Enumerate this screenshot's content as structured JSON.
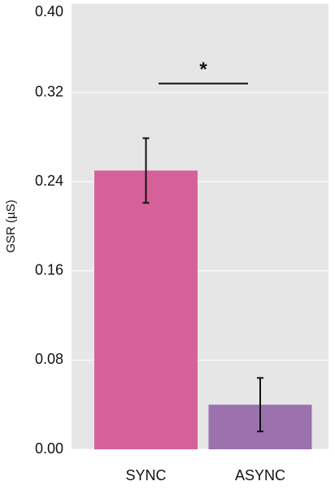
{
  "chart_data": {
    "type": "bar",
    "y_label": "GSR (µS)",
    "categories": [
      "SYNC",
      "ASYNC"
    ],
    "values": [
      0.25,
      0.04
    ],
    "errors": [
      0.029,
      0.024
    ],
    "colors": [
      "#d6619a",
      "#9b72ad"
    ],
    "ylim": [
      0,
      0.4
    ],
    "yticks": [
      {
        "value": 0,
        "label": "0.00"
      },
      {
        "value": 0.08,
        "label": "0.08"
      },
      {
        "value": 0.16,
        "label": "0.16"
      },
      {
        "value": 0.24,
        "label": "0.24"
      },
      {
        "value": 0.32,
        "label": "0.32"
      },
      {
        "value": 0.4,
        "label": "0.40"
      }
    ],
    "grid": true,
    "annotation": {
      "text": "*",
      "y": 0.328
    }
  }
}
